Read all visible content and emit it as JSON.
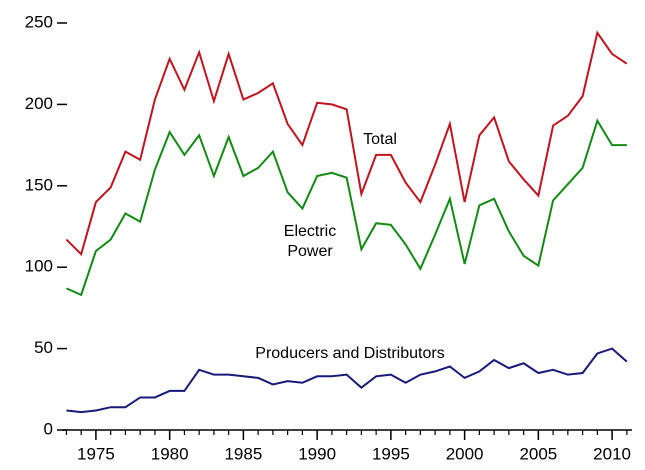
{
  "chart_data": {
    "type": "line",
    "x": [
      1973,
      1974,
      1975,
      1976,
      1977,
      1978,
      1979,
      1980,
      1981,
      1982,
      1983,
      1984,
      1985,
      1986,
      1987,
      1988,
      1989,
      1990,
      1991,
      1992,
      1993,
      1994,
      1995,
      1996,
      1997,
      1998,
      1999,
      2000,
      2001,
      2002,
      2003,
      2004,
      2005,
      2006,
      2007,
      2008,
      2009,
      2010,
      2011
    ],
    "series": [
      {
        "name": "Total",
        "color": "#c0141e",
        "values": [
          117,
          108,
          140,
          149,
          171,
          166,
          203,
          228,
          209,
          232,
          202,
          231,
          203,
          207,
          213,
          188,
          175,
          201,
          200,
          197,
          145,
          169,
          169,
          152,
          140,
          163,
          188,
          140,
          181,
          192,
          165,
          154,
          144,
          187,
          193,
          205,
          244,
          231,
          225
        ]
      },
      {
        "name": "Electric Power",
        "color": "#138a13",
        "values": [
          87,
          83,
          110,
          117,
          133,
          128,
          160,
          183,
          169,
          181,
          156,
          180,
          156,
          161,
          171,
          146,
          136,
          156,
          158,
          155,
          111,
          127,
          126,
          114,
          99,
          120,
          142,
          102,
          138,
          142,
          122,
          107,
          101,
          141,
          151,
          161,
          190,
          175,
          175
        ]
      },
      {
        "name": "Producers and Distributors",
        "color": "#1a1a7a",
        "values": [
          12,
          11,
          12,
          14,
          14,
          20,
          20,
          24,
          24,
          37,
          34,
          34,
          33,
          32,
          28,
          30,
          29,
          33,
          33,
          34,
          26,
          33,
          34,
          29,
          34,
          36,
          39,
          32,
          36,
          43,
          38,
          41,
          35,
          37,
          34,
          35,
          47,
          50,
          42
        ]
      }
    ],
    "xlim": [
      1972.7,
      2011.35
    ],
    "xticks": [
      1975,
      1980,
      1985,
      1990,
      1995,
      2000,
      2005,
      2010
    ],
    "ylim": [
      0,
      250
    ],
    "yticks": [
      0,
      50,
      100,
      150,
      200,
      250
    ],
    "grid": false
  }
}
